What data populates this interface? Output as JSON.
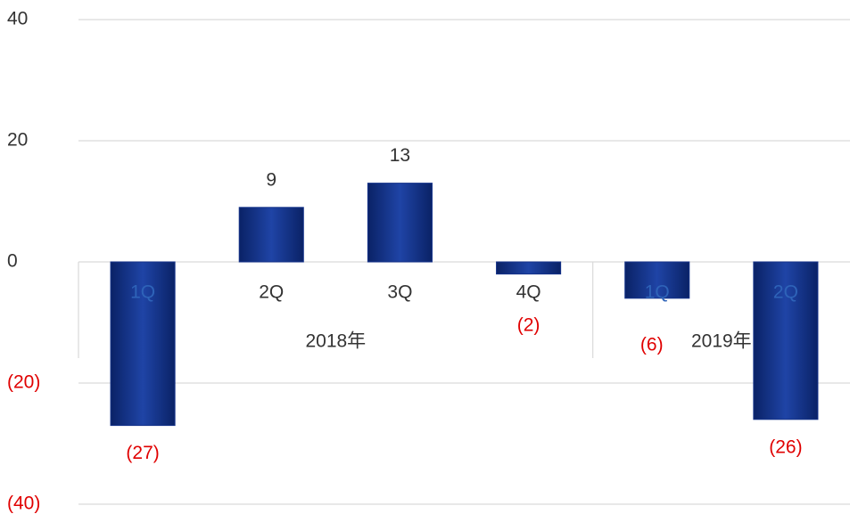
{
  "chart_data": {
    "type": "bar",
    "categories": [
      "1Q",
      "2Q",
      "3Q",
      "4Q",
      "1Q",
      "2Q"
    ],
    "groups": [
      {
        "name": "2018年",
        "size": 4
      },
      {
        "name": "2019年",
        "size": 2
      }
    ],
    "values": [
      -27,
      9,
      13,
      -2,
      -6,
      -26
    ],
    "value_labels": [
      "(27)",
      "9",
      "13",
      "(2)",
      "(6)",
      "(26)"
    ],
    "color": "#15338a",
    "negative_label_color": "#e00000",
    "ylim": [
      -40,
      40
    ],
    "yticks": [
      {
        "value": -40,
        "label": "(40)"
      },
      {
        "value": -20,
        "label": "(20)"
      },
      0,
      20,
      40
    ],
    "grid": true
  }
}
